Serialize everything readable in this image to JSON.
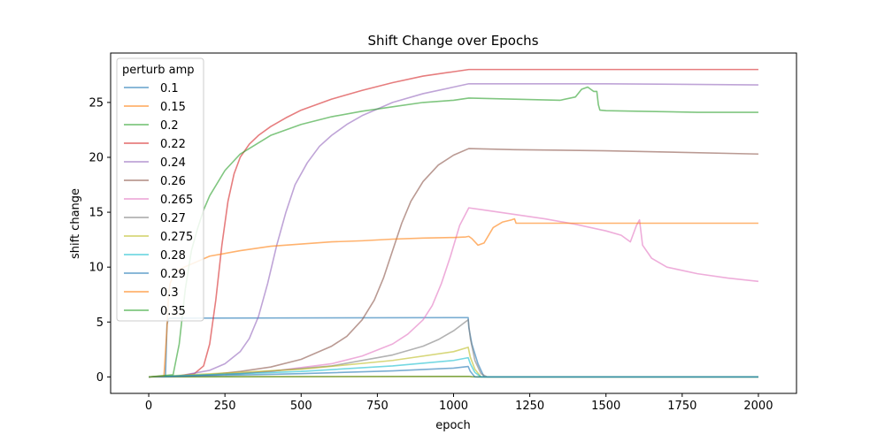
{
  "chart_data": {
    "type": "line",
    "title": "Shift Change over Epochs",
    "xlabel": "epoch",
    "ylabel": "shift change",
    "xlim": [
      -125,
      2125
    ],
    "ylim": [
      -1.5,
      29.5
    ],
    "xticks": [
      0,
      250,
      500,
      750,
      1000,
      1250,
      1500,
      1750,
      2000
    ],
    "yticks": [
      0,
      5,
      10,
      15,
      20,
      25
    ],
    "grid": false,
    "legend": {
      "title": "perturb amp",
      "placement": "top-left"
    },
    "series": [
      {
        "name": "0.1",
        "color": "#1f77b4",
        "x": [
          0,
          55,
          60,
          65,
          70,
          1048,
          1050,
          1060,
          1080,
          1100,
          2000
        ],
        "y": [
          0.0,
          0.1,
          4.8,
          5.3,
          5.35,
          5.4,
          4.5,
          3.0,
          1.2,
          0.0,
          0.0
        ]
      },
      {
        "name": "0.15",
        "color": "#ff7f0e",
        "x": [
          0,
          1050,
          1060,
          1080,
          2000
        ],
        "y": [
          0.0,
          0.05,
          0.02,
          0.0,
          0.0
        ]
      },
      {
        "name": "0.2",
        "color": "#2ca02c",
        "x": [
          0,
          1050,
          1060,
          1080,
          2000
        ],
        "y": [
          0.0,
          0.05,
          0.02,
          0.0,
          0.0
        ]
      },
      {
        "name": "0.22",
        "color": "#d62728",
        "x": [
          0,
          100,
          150,
          180,
          200,
          220,
          240,
          260,
          280,
          300,
          330,
          360,
          400,
          450,
          500,
          600,
          700,
          800,
          900,
          1000,
          1050,
          1200,
          1500,
          2000
        ],
        "y": [
          0.0,
          0.1,
          0.3,
          1.0,
          3.0,
          7.0,
          12.0,
          16.0,
          18.5,
          20.0,
          21.2,
          22.0,
          22.8,
          23.6,
          24.3,
          25.3,
          26.1,
          26.8,
          27.4,
          27.8,
          28.0,
          28.0,
          28.0,
          28.0
        ]
      },
      {
        "name": "0.24",
        "color": "#9467bd",
        "x": [
          0,
          100,
          200,
          250,
          300,
          330,
          360,
          390,
          420,
          450,
          480,
          520,
          560,
          600,
          650,
          700,
          800,
          900,
          1000,
          1050,
          1200,
          1500,
          2000
        ],
        "y": [
          0.0,
          0.1,
          0.6,
          1.2,
          2.3,
          3.5,
          5.5,
          8.5,
          12.0,
          15.0,
          17.5,
          19.5,
          21.0,
          22.0,
          23.0,
          23.8,
          25.0,
          25.8,
          26.4,
          26.7,
          26.7,
          26.7,
          26.6
        ]
      },
      {
        "name": "0.26",
        "color": "#8c564b",
        "x": [
          0,
          200,
          300,
          400,
          500,
          600,
          650,
          700,
          740,
          770,
          800,
          830,
          860,
          900,
          950,
          1000,
          1050,
          1200,
          1500,
          2000
        ],
        "y": [
          0.0,
          0.2,
          0.5,
          0.9,
          1.6,
          2.8,
          3.7,
          5.2,
          7.0,
          9.0,
          11.5,
          14.0,
          16.0,
          17.8,
          19.3,
          20.2,
          20.8,
          20.7,
          20.6,
          20.3
        ]
      },
      {
        "name": "0.265",
        "color": "#e377c2",
        "x": [
          0,
          200,
          400,
          600,
          700,
          800,
          850,
          900,
          930,
          960,
          990,
          1020,
          1050,
          1100,
          1200,
          1300,
          1400,
          1500,
          1550,
          1580,
          1600,
          1610,
          1620,
          1650,
          1700,
          1800,
          1900,
          2000
        ],
        "y": [
          0.0,
          0.15,
          0.5,
          1.2,
          1.9,
          3.0,
          3.9,
          5.2,
          6.5,
          8.5,
          11.0,
          13.8,
          15.4,
          15.2,
          14.8,
          14.4,
          13.9,
          13.3,
          12.9,
          12.3,
          13.8,
          14.3,
          12.0,
          10.8,
          10.0,
          9.4,
          9.0,
          8.7
        ]
      },
      {
        "name": "0.27",
        "color": "#7f7f7f",
        "x": [
          0,
          300,
          600,
          800,
          900,
          950,
          1000,
          1048,
          1055,
          1070,
          1090,
          1110,
          2000
        ],
        "y": [
          0.0,
          0.3,
          1.0,
          2.0,
          2.8,
          3.4,
          4.2,
          5.2,
          3.5,
          1.5,
          0.3,
          0.0,
          0.0
        ]
      },
      {
        "name": "0.275",
        "color": "#bcbd22",
        "x": [
          0,
          500,
          800,
          1000,
          1048,
          1055,
          1070,
          1090,
          2000
        ],
        "y": [
          0.0,
          0.7,
          1.5,
          2.3,
          2.7,
          1.8,
          0.7,
          0.0,
          0.0
        ]
      },
      {
        "name": "0.28",
        "color": "#17becf",
        "x": [
          0,
          500,
          800,
          1000,
          1048,
          1055,
          1070,
          1090,
          2000
        ],
        "y": [
          0.0,
          0.5,
          1.0,
          1.5,
          1.75,
          1.2,
          0.4,
          0.0,
          0.0
        ]
      },
      {
        "name": "0.29",
        "color": "#1f77b4",
        "x": [
          0,
          500,
          800,
          1000,
          1048,
          1055,
          1070,
          2000
        ],
        "y": [
          0.0,
          0.3,
          0.55,
          0.8,
          0.95,
          0.5,
          0.0,
          0.0
        ]
      },
      {
        "name": "0.3",
        "color": "#ff7f0e",
        "x": [
          0,
          50,
          60,
          65,
          70,
          80,
          100,
          150,
          200,
          300,
          400,
          500,
          600,
          700,
          800,
          900,
          1000,
          1040,
          1050,
          1060,
          1080,
          1100,
          1130,
          1160,
          1190,
          1200,
          1205,
          1300,
          1500,
          1700,
          2000
        ],
        "y": [
          0.0,
          0.1,
          4.5,
          7.5,
          8.5,
          9.2,
          9.8,
          10.4,
          11.0,
          11.5,
          11.9,
          12.1,
          12.3,
          12.4,
          12.55,
          12.65,
          12.7,
          12.75,
          12.8,
          12.6,
          12.0,
          12.2,
          13.6,
          14.1,
          14.3,
          14.4,
          14.0,
          14.0,
          14.0,
          14.0,
          14.0
        ]
      },
      {
        "name": "0.35",
        "color": "#2ca02c",
        "x": [
          0,
          80,
          100,
          120,
          140,
          160,
          180,
          200,
          250,
          300,
          400,
          500,
          600,
          700,
          800,
          900,
          1000,
          1050,
          1200,
          1350,
          1400,
          1420,
          1440,
          1460,
          1470,
          1475,
          1480,
          1500,
          1600,
          1800,
          2000
        ],
        "y": [
          0.0,
          0.2,
          3.0,
          8.0,
          11.5,
          13.5,
          15.2,
          16.5,
          18.8,
          20.3,
          22.0,
          23.0,
          23.7,
          24.2,
          24.6,
          25.0,
          25.2,
          25.4,
          25.3,
          25.2,
          25.5,
          26.2,
          26.4,
          26.0,
          26.0,
          24.8,
          24.3,
          24.25,
          24.2,
          24.1,
          24.1
        ]
      }
    ]
  }
}
